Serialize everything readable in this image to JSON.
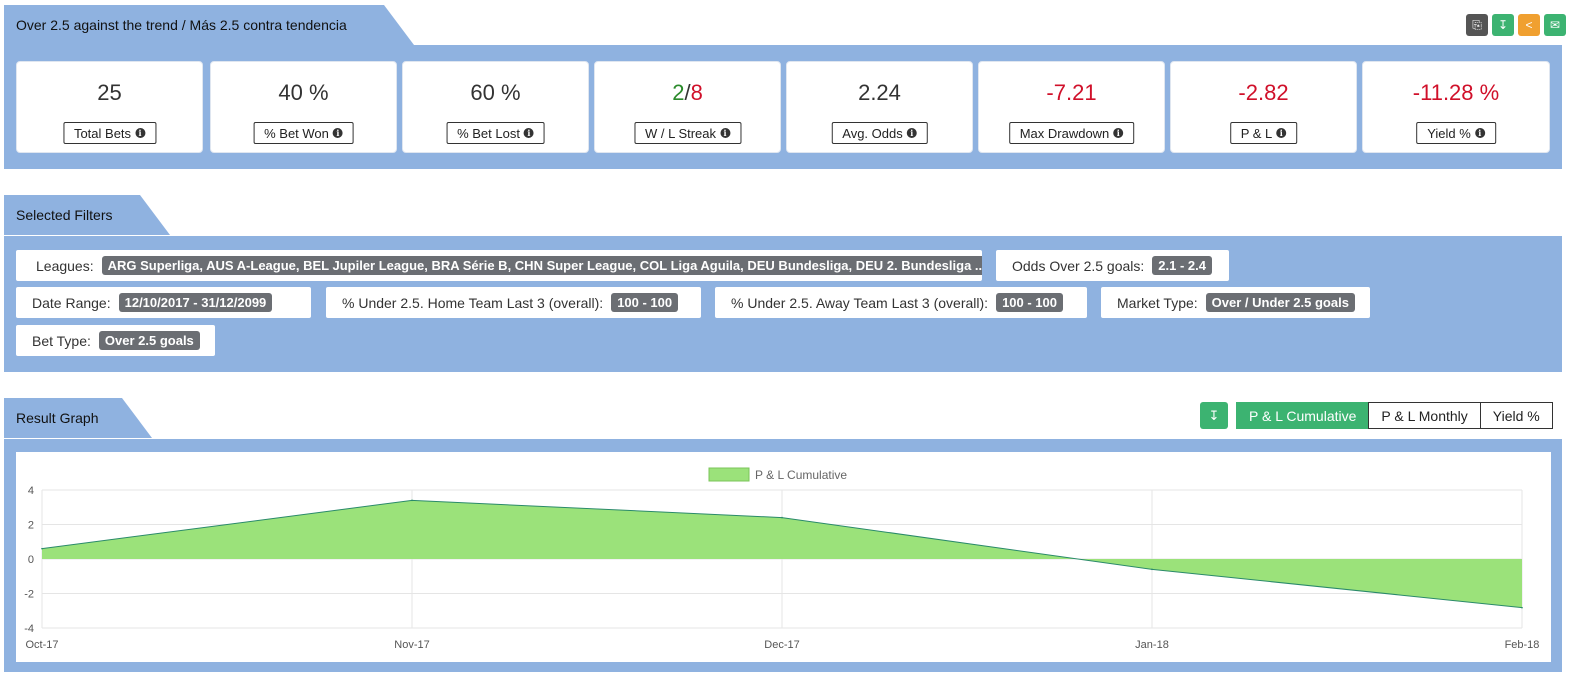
{
  "report": {
    "title": "Over 2.5 against the trend / Más 2.5 contra tendencia",
    "actions": [
      {
        "icon": "copy-icon",
        "color": "#555555"
      },
      {
        "icon": "download-icon",
        "color": "#3cb371"
      },
      {
        "icon": "share-icon",
        "color": "#f0a030"
      },
      {
        "icon": "email-icon",
        "color": "#3cb371"
      }
    ]
  },
  "stats": [
    {
      "value": "25",
      "label": "Total Bets"
    },
    {
      "value": "40 %",
      "label": "% Bet Won"
    },
    {
      "value": "60 %",
      "label": "% Bet Lost"
    },
    {
      "value_win": "2",
      "value_sep": "/",
      "value_loss": "8",
      "label": "W / L Streak"
    },
    {
      "value": "2.24",
      "label": "Avg. Odds"
    },
    {
      "value": "-7.21",
      "label": "Max Drawdown"
    },
    {
      "value": "-2.82",
      "label": "P & L"
    },
    {
      "value": "-11.28 %",
      "label": "Yield %"
    }
  ],
  "filters_section": {
    "title": "Selected Filters",
    "items": [
      {
        "label": "Leagues:",
        "value": "ARG Superliga, AUS A-League, BEL Jupiler League, BRA Série B, CHN Super League, COL Liga Aguila, DEU Bundesliga, DEU 2. Bundesliga ..."
      },
      {
        "label": "Odds Over 2.5 goals:",
        "value": "2.1 - 2.4"
      },
      {
        "label": "Date Range:",
        "value": "12/10/2017 - 31/12/2099"
      },
      {
        "label": "% Under 2.5. Home Team Last 3 (overall):",
        "value": "100 - 100"
      },
      {
        "label": "% Under 2.5. Away Team Last 3 (overall):",
        "value": "100 - 100"
      },
      {
        "label": "Market Type:",
        "value": "Over / Under 2.5 goals"
      },
      {
        "label": "Bet Type:",
        "value": "Over 2.5 goals"
      }
    ]
  },
  "graph_section": {
    "title": "Result Graph",
    "tabs": [
      "P & L Cumulative",
      "P & L Monthly",
      "Yield %"
    ],
    "active_tab": "P & L Cumulative"
  },
  "chart_data": {
    "type": "area",
    "series": [
      {
        "name": "P & L Cumulative",
        "color": "#9be27a",
        "stroke": "#2a8a6a"
      }
    ],
    "x": [
      "Oct-17",
      "Nov-17",
      "Dec-17",
      "Jan-18",
      "Feb-18"
    ],
    "points": [
      {
        "x": "Oct-17",
        "y": 0.6
      },
      {
        "x": "Nov-17",
        "y": 3.4
      },
      {
        "x": "Dec-17",
        "y": 2.4
      },
      {
        "x": "Jan-18",
        "y": -0.6
      },
      {
        "x": "Feb-18",
        "y": -2.82
      }
    ],
    "ylim": [
      -4,
      4
    ],
    "yticks": [
      "4",
      "2",
      "0",
      "-2",
      "-4"
    ],
    "grid": true,
    "legend": "top-center"
  }
}
